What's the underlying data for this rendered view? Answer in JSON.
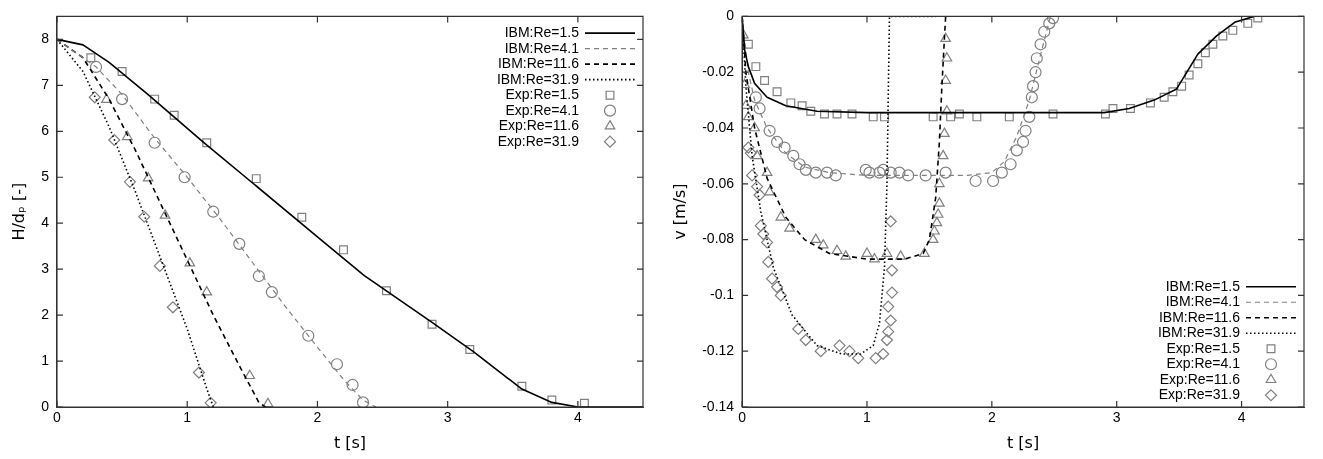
{
  "chart_data": [
    {
      "type": "line",
      "xlabel": "t [s]",
      "ylabel": "H/dₚ [-]",
      "xlim": [
        0,
        4.5
      ],
      "ylim": [
        0,
        8.5
      ],
      "xticks": [
        0,
        1,
        2,
        3,
        4
      ],
      "yticks": [
        0,
        1,
        2,
        3,
        4,
        5,
        6,
        7,
        8
      ],
      "legend": "top right",
      "series": [
        {
          "name": "IBM:Re=1.5",
          "type": "line",
          "color": "#000000",
          "line_style": "solid",
          "x": [
            0,
            0.2,
            0.4,
            0.7,
            1.13,
            1.5,
            2.0,
            2.36,
            2.88,
            3.2,
            3.57,
            3.8,
            4.0,
            4.5
          ],
          "values": [
            8,
            7.88,
            7.5,
            6.8,
            5.75,
            4.88,
            3.7,
            2.86,
            1.84,
            1.2,
            0.39,
            0.1,
            0,
            0
          ]
        },
        {
          "name": "IBM:Re=4.1",
          "type": "line",
          "color": "#808080",
          "line_style": "dashed",
          "x": [
            0,
            0.3,
            0.5,
            0.75,
            1.0,
            1.25,
            1.5,
            1.75,
            2.0,
            2.2,
            2.35,
            2.45
          ],
          "values": [
            8,
            7.4,
            6.8,
            5.85,
            5.0,
            4.1,
            3.15,
            2.2,
            1.3,
            0.6,
            0.15,
            0
          ]
        },
        {
          "name": "IBM:Re=11.6",
          "type": "line",
          "color": "#000000",
          "line_style": "dashed",
          "x": [
            0,
            0.2,
            0.4,
            0.6,
            0.8,
            1.0,
            1.2,
            1.4,
            1.55,
            1.6
          ],
          "values": [
            8,
            7.6,
            6.7,
            5.6,
            4.4,
            3.2,
            2.0,
            0.9,
            0.1,
            0
          ]
        },
        {
          "name": "IBM:Re=31.9",
          "type": "line",
          "color": "#000000",
          "line_style": "dotted",
          "x": [
            0,
            0.2,
            0.4,
            0.6,
            0.8,
            1.0,
            1.15,
            1.2
          ],
          "values": [
            8,
            7.3,
            6.1,
            4.7,
            3.2,
            1.7,
            0.4,
            0
          ]
        },
        {
          "name": "Exp:Re=1.5",
          "type": "scatter",
          "color": "#808080",
          "marker": "square",
          "x": [
            0.26,
            0.5,
            0.75,
            0.9,
            1.15,
            1.53,
            1.88,
            2.2,
            2.53,
            2.88,
            3.17,
            3.57,
            3.8,
            4.05
          ],
          "values": [
            7.6,
            7.3,
            6.7,
            6.35,
            5.75,
            4.97,
            4.13,
            3.42,
            2.53,
            1.8,
            1.25,
            0.45,
            0.15,
            0.08
          ]
        },
        {
          "name": "Exp:Re=4.1",
          "type": "scatter",
          "color": "#808080",
          "marker": "circle",
          "x": [
            0.3,
            0.5,
            0.75,
            0.98,
            1.2,
            1.4,
            1.55,
            1.65,
            1.93,
            2.15,
            2.27,
            2.35
          ],
          "values": [
            7.4,
            6.7,
            5.75,
            5.0,
            4.25,
            3.55,
            2.85,
            2.5,
            1.55,
            0.93,
            0.48,
            0.1
          ]
        },
        {
          "name": "Exp:Re=11.6",
          "type": "scatter",
          "color": "#808080",
          "marker": "triangle",
          "x": [
            0.38,
            0.54,
            0.7,
            0.83,
            1.02,
            1.15,
            1.48,
            1.62
          ],
          "values": [
            6.69,
            5.88,
            4.98,
            4.17,
            3.13,
            2.5,
            0.68,
            0.07
          ]
        },
        {
          "name": "Exp:Re=31.9",
          "type": "scatter",
          "color": "#808080",
          "marker": "diamond",
          "x": [
            0.29,
            0.44,
            0.56,
            0.67,
            0.79,
            0.89,
            1.09,
            1.18
          ],
          "values": [
            6.74,
            5.81,
            4.9,
            4.14,
            3.07,
            2.17,
            0.75,
            0.09
          ]
        }
      ]
    },
    {
      "type": "line",
      "xlabel": "t [s]",
      "ylabel": "v [m/s]",
      "xlim": [
        0,
        4.5
      ],
      "ylim": [
        -0.14,
        0
      ],
      "xticks": [
        0,
        1,
        2,
        3,
        4
      ],
      "yticks": [
        -0.14,
        -0.12,
        -0.1,
        -0.08,
        -0.06,
        -0.04,
        -0.02,
        0
      ],
      "legend": "bottom right",
      "series": [
        {
          "name": "IBM:Re=1.5",
          "type": "line",
          "color": "#000000",
          "line_style": "solid",
          "x": [
            0,
            0.02,
            0.05,
            0.1,
            0.2,
            0.35,
            0.6,
            1.0,
            2.0,
            2.9,
            3.1,
            3.3,
            3.48,
            3.65,
            3.8,
            3.95,
            4.1
          ],
          "values": [
            0,
            -0.012,
            -0.018,
            -0.024,
            -0.029,
            -0.032,
            -0.034,
            -0.0345,
            -0.0345,
            -0.0345,
            -0.033,
            -0.03,
            -0.026,
            -0.0135,
            -0.007,
            -0.002,
            0
          ]
        },
        {
          "name": "IBM:Re=4.1",
          "type": "line",
          "color": "#808080",
          "line_style": "dashed",
          "x": [
            0,
            0.05,
            0.1,
            0.2,
            0.35,
            0.5,
            0.7,
            1.0,
            1.8,
            2.0,
            2.1,
            2.2,
            2.3,
            2.4,
            2.47
          ],
          "values": [
            0,
            -0.02,
            -0.03,
            -0.04,
            -0.049,
            -0.054,
            -0.056,
            -0.057,
            -0.057,
            -0.056,
            -0.052,
            -0.043,
            -0.03,
            -0.012,
            0
          ]
        },
        {
          "name": "IBM:Re=11.6",
          "type": "line",
          "color": "#000000",
          "line_style": "dashed",
          "x": [
            0,
            0.03,
            0.1,
            0.2,
            0.35,
            0.5,
            0.7,
            1.0,
            1.3,
            1.45,
            1.5,
            1.55,
            1.58,
            1.6,
            1.62,
            1.63
          ],
          "values": [
            0,
            -0.02,
            -0.04,
            -0.058,
            -0.072,
            -0.08,
            -0.085,
            -0.087,
            -0.087,
            -0.085,
            -0.08,
            -0.065,
            -0.045,
            -0.025,
            -0.008,
            0
          ]
        },
        {
          "name": "IBM:Re=31.9",
          "type": "line",
          "color": "#000000",
          "line_style": "dotted",
          "x": [
            0,
            0.03,
            0.08,
            0.15,
            0.25,
            0.4,
            0.6,
            0.8,
            0.95,
            1.05,
            1.1,
            1.14,
            1.16,
            1.17,
            1.18,
            1.55
          ],
          "values": [
            0,
            -0.025,
            -0.05,
            -0.07,
            -0.09,
            -0.107,
            -0.118,
            -0.121,
            -0.121,
            -0.118,
            -0.11,
            -0.09,
            -0.06,
            -0.03,
            0,
            0
          ]
        },
        {
          "name": "Exp:Re=1.5",
          "type": "scatter",
          "color": "#808080",
          "marker": "square",
          "x": [
            0.05,
            0.11,
            0.18,
            0.28,
            0.39,
            0.48,
            0.55,
            0.66,
            0.76,
            0.88,
            1.05,
            1.14,
            1.53,
            1.67,
            1.74,
            1.88,
            2.14,
            2.49,
            2.91,
            2.97,
            3.11,
            3.27,
            3.38,
            3.45,
            3.52,
            3.58,
            3.65,
            3.71,
            3.77,
            3.85,
            3.93,
            4.05,
            4.13
          ],
          "values": [
            -0.01,
            -0.018,
            -0.023,
            -0.027,
            -0.031,
            -0.032,
            -0.034,
            -0.035,
            -0.035,
            -0.035,
            -0.036,
            -0.036,
            -0.036,
            -0.036,
            -0.035,
            -0.036,
            -0.036,
            -0.035,
            -0.035,
            -0.033,
            -0.033,
            -0.031,
            -0.029,
            -0.027,
            -0.025,
            -0.021,
            -0.017,
            -0.013,
            -0.01,
            -0.007,
            -0.005,
            -0.0025,
            -0.0006
          ]
        },
        {
          "name": "Exp:Re=4.1",
          "type": "scatter",
          "color": "#808080",
          "marker": "circle",
          "x": [
            0.11,
            0.14,
            0.22,
            0.28,
            0.34,
            0.41,
            0.46,
            0.51,
            0.59,
            0.68,
            0.75,
            0.99,
            1.02,
            1.1,
            1.13,
            1.19,
            1.26,
            1.33,
            1.47,
            1.63,
            1.87,
            2.01,
            2.08,
            2.15,
            2.2,
            2.25,
            2.27,
            2.3,
            2.32,
            2.33,
            2.35,
            2.36,
            2.39,
            2.42,
            2.46,
            2.49
          ],
          "values": [
            -0.029,
            -0.033,
            -0.041,
            -0.045,
            -0.047,
            -0.05,
            -0.053,
            -0.055,
            -0.056,
            -0.056,
            -0.057,
            -0.055,
            -0.056,
            -0.056,
            -0.055,
            -0.056,
            -0.056,
            -0.057,
            -0.057,
            -0.056,
            -0.059,
            -0.059,
            -0.056,
            -0.053,
            -0.048,
            -0.045,
            -0.041,
            -0.036,
            -0.029,
            -0.025,
            -0.02,
            -0.015,
            -0.01,
            -0.0055,
            -0.0025,
            -0.0006
          ]
        },
        {
          "name": "Exp:Re=11.6",
          "type": "scatter",
          "color": "#808080",
          "marker": "triangle",
          "x": [
            0.01,
            0.02,
            0.03,
            0.05,
            0.1,
            0.12,
            0.2,
            0.22,
            0.31,
            0.38,
            0.59,
            0.65,
            0.76,
            0.83,
            1.0,
            1.06,
            1.16,
            1.27,
            1.46,
            1.53,
            1.54,
            1.56,
            1.57,
            1.58,
            1.58,
            1.61,
            1.62,
            1.64,
            1.63,
            1.64,
            1.63
          ],
          "values": [
            -0.0067,
            -0.0245,
            -0.032,
            -0.036,
            -0.04,
            -0.05,
            -0.056,
            -0.063,
            -0.072,
            -0.076,
            -0.08,
            -0.082,
            -0.084,
            -0.086,
            -0.085,
            -0.087,
            -0.085,
            -0.086,
            -0.085,
            -0.08,
            -0.077,
            -0.074,
            -0.071,
            -0.067,
            -0.06,
            -0.05,
            -0.042,
            -0.034,
            -0.023,
            -0.015,
            -0.008
          ]
        },
        {
          "name": "Exp:Re=31.9",
          "type": "scatter",
          "color": "#808080",
          "marker": "diamond",
          "x": [
            0.05,
            0.07,
            0.08,
            0.12,
            0.14,
            0.15,
            0.17,
            0.2,
            0.21,
            0.24,
            0.28,
            0.31,
            0.45,
            0.51,
            0.63,
            0.78,
            0.86,
            0.93,
            1.07,
            1.13,
            1.16,
            1.17,
            1.19,
            1.17,
            1.2,
            1.2,
            1.19
          ],
          "values": [
            -0.047,
            -0.049,
            -0.057,
            -0.061,
            -0.064,
            -0.075,
            -0.078,
            -0.081,
            -0.088,
            -0.094,
            -0.097,
            -0.1,
            -0.112,
            -0.116,
            -0.12,
            -0.118,
            -0.12,
            -0.1225,
            -0.1225,
            -0.121,
            -0.116,
            -0.113,
            -0.109,
            -0.104,
            -0.099,
            -0.091,
            -0.0735
          ]
        }
      ]
    }
  ]
}
